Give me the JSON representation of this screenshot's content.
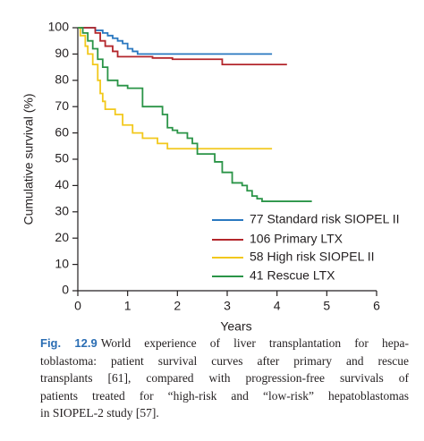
{
  "chart_data": {
    "type": "step",
    "xlabel": "Years",
    "ylabel": "Cumulative survival (%)",
    "xlim": [
      0,
      6
    ],
    "xticks": [
      0,
      1,
      2,
      3,
      4,
      5,
      6
    ],
    "ylim": [
      0,
      100
    ],
    "yticks": [
      0,
      10,
      20,
      30,
      40,
      50,
      60,
      70,
      80,
      90,
      100
    ],
    "series": [
      {
        "name": "77 Standard risk SIOPEL II",
        "color": "#2a78c0",
        "x": [
          0,
          0.35,
          0.5,
          0.6,
          0.7,
          0.8,
          0.9,
          1.0,
          1.1,
          1.2,
          3.9
        ],
        "values": [
          100,
          99,
          98,
          97,
          96,
          95,
          94,
          92,
          91,
          90,
          90
        ]
      },
      {
        "name": "106 Primary LTX",
        "color": "#b3262b",
        "x": [
          0,
          0.35,
          0.45,
          0.55,
          0.7,
          0.8,
          1.5,
          1.9,
          2.9,
          4.2
        ],
        "values": [
          100,
          98,
          95,
          93,
          91,
          89,
          88.5,
          88,
          86,
          86
        ]
      },
      {
        "name": "58 High risk SIOPEL II",
        "color": "#f2c81c",
        "x": [
          0,
          0.05,
          0.15,
          0.2,
          0.3,
          0.4,
          0.45,
          0.5,
          0.55,
          0.75,
          0.9,
          1.1,
          1.3,
          1.6,
          1.8,
          3.9
        ],
        "values": [
          100,
          97,
          93,
          90,
          86,
          80,
          75,
          72,
          69,
          67,
          63,
          60,
          58,
          56,
          54,
          54
        ]
      },
      {
        "name": "41 Rescue LTX",
        "color": "#2a9447",
        "x": [
          0,
          0.1,
          0.2,
          0.3,
          0.4,
          0.5,
          0.6,
          0.8,
          1.0,
          1.3,
          1.7,
          1.8,
          1.9,
          2.0,
          2.2,
          2.3,
          2.4,
          2.75,
          2.9,
          3.1,
          3.3,
          3.4,
          3.5,
          3.6,
          3.7,
          4.7
        ],
        "values": [
          100,
          98,
          95,
          92,
          88,
          85,
          80,
          78,
          77,
          70,
          67,
          62,
          61,
          60,
          58,
          56,
          52,
          49,
          45,
          41,
          40,
          38,
          36,
          35,
          34,
          34
        ]
      }
    ]
  },
  "caption": {
    "label": "Fig. 12.9",
    "lines": [
      "World experience of liver transplantation for hepa-",
      "toblastoma: patient survival curves after primary and rescue",
      "transplants [61], compared with progression-free survivals of",
      "patients treated for “high-risk and “low-risk” hepatoblastomas",
      "in SIOPEL-2 study [57]."
    ]
  }
}
